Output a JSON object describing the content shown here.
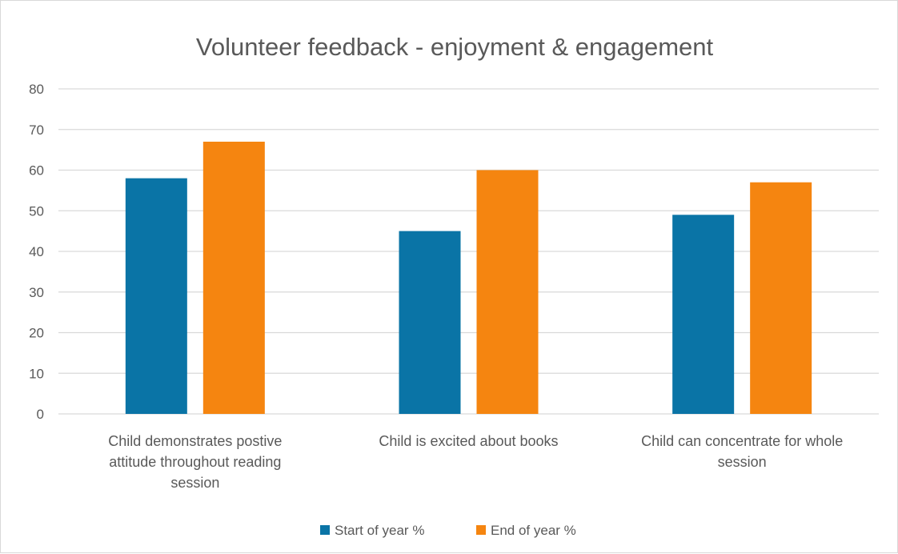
{
  "chart_data": {
    "type": "bar",
    "title": "Volunteer feedback - enjoyment & engagement",
    "categories": [
      [
        "Child demonstrates postive",
        "attitude throughout reading",
        "session"
      ],
      [
        "Child is excited about books"
      ],
      [
        "Child can concentrate for whole",
        "session"
      ]
    ],
    "series": [
      {
        "name": "Start of year %",
        "color": "#0A74A6",
        "values": [
          58,
          45,
          49
        ]
      },
      {
        "name": "End of year %",
        "color": "#F58510",
        "values": [
          67,
          60,
          57
        ]
      }
    ],
    "ylim": [
      0,
      80
    ],
    "yticks": [
      0,
      10,
      20,
      30,
      40,
      50,
      60,
      70,
      80
    ],
    "grid": true,
    "gridColor": "#d9d9d9",
    "legend_position": "bottom",
    "xlabel": "",
    "ylabel": ""
  }
}
